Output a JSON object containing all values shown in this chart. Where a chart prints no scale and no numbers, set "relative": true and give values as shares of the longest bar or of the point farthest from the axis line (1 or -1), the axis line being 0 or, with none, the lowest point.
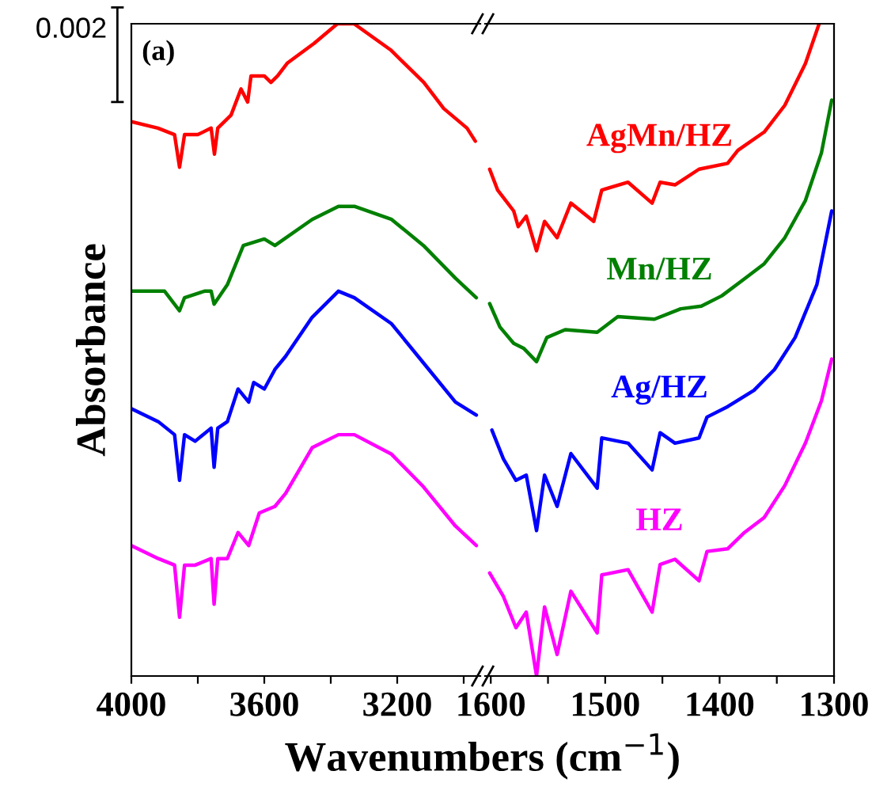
{
  "chart_data": [
    {
      "type": "line",
      "relative": true,
      "tick_labels": "x",
      "xlabel": "Wavenumbers (cm$^{−1}$)",
      "ylabel": "Absorbance",
      "annotations": [
        "(a)",
        "0.002"
      ],
      "xlim": [
        4000,
        2950
      ],
      "xticks": [
        4000,
        {
          "value": 3800,
          "label": null
        },
        3600,
        {
          "value": 3400,
          "label": null
        },
        3200,
        {
          "value": 3000,
          "label": null
        }
      ],
      "series": [
        {
          "color": "#ff0000",
          "x": [
            4000,
            3920,
            3870,
            3855,
            3840,
            3800,
            3760,
            3750,
            3740,
            3700,
            3670,
            3650,
            3640,
            3600,
            3580,
            3560,
            3530,
            3450,
            3380,
            3330,
            3220,
            3120,
            3060,
            2990,
            2965
          ],
          "values": [
            0.85,
            0.84,
            0.83,
            0.78,
            0.83,
            0.83,
            0.84,
            0.8,
            0.84,
            0.86,
            0.9,
            0.88,
            0.92,
            0.92,
            0.91,
            0.92,
            0.94,
            0.97,
            1.0,
            1.0,
            0.96,
            0.91,
            0.87,
            0.84,
            0.82
          ]
        },
        {
          "color": "#008000",
          "x": [
            4000,
            3900,
            3855,
            3840,
            3780,
            3760,
            3751,
            3711,
            3663,
            3600,
            3568,
            3456,
            3377,
            3329,
            3217,
            3121,
            3025,
            2962
          ],
          "values": [
            0.59,
            0.59,
            0.56,
            0.58,
            0.59,
            0.59,
            0.57,
            0.6,
            0.66,
            0.67,
            0.66,
            0.7,
            0.72,
            0.72,
            0.7,
            0.66,
            0.61,
            0.58
          ]
        },
        {
          "color": "#0000ff",
          "x": [
            4000,
            3919,
            3870,
            3855,
            3840,
            3808,
            3760,
            3751,
            3740,
            3711,
            3679,
            3647,
            3632,
            3600,
            3568,
            3536,
            3456,
            3377,
            3329,
            3217,
            3121,
            3025,
            2962
          ],
          "values": [
            0.41,
            0.39,
            0.37,
            0.3,
            0.37,
            0.36,
            0.38,
            0.32,
            0.38,
            0.39,
            0.44,
            0.42,
            0.45,
            0.44,
            0.47,
            0.49,
            0.55,
            0.59,
            0.58,
            0.54,
            0.48,
            0.42,
            0.4
          ]
        },
        {
          "color": "#ff00ff",
          "x": [
            4000,
            3919,
            3870,
            3855,
            3840,
            3808,
            3760,
            3751,
            3740,
            3711,
            3679,
            3647,
            3615,
            3568,
            3536,
            3456,
            3377,
            3329,
            3217,
            3121,
            3025,
            2962
          ],
          "values": [
            0.2,
            0.18,
            0.17,
            0.09,
            0.17,
            0.17,
            0.18,
            0.11,
            0.18,
            0.18,
            0.22,
            0.2,
            0.25,
            0.26,
            0.28,
            0.35,
            0.37,
            0.37,
            0.34,
            0.29,
            0.23,
            0.2
          ]
        }
      ]
    },
    {
      "type": "line",
      "relative": true,
      "tick_labels": "x",
      "xlim": [
        1605,
        1300
      ],
      "xticks": [
        1600,
        {
          "value": 1550,
          "label": null
        },
        1500,
        {
          "value": 1450,
          "label": null
        },
        1400,
        {
          "value": 1350,
          "label": null
        },
        1300
      ],
      "series": [
        {
          "name": "AgMn/HZ",
          "color": "#ff0000",
          "x": [
            1601,
            1594,
            1580,
            1576,
            1569,
            1560,
            1553,
            1542,
            1530,
            1510,
            1503,
            1480,
            1459,
            1452,
            1439,
            1418,
            1393,
            1384,
            1361,
            1343,
            1325,
            1313
          ],
          "values": [
            0.777,
            0.745,
            0.713,
            0.689,
            0.705,
            0.652,
            0.697,
            0.672,
            0.725,
            0.697,
            0.745,
            0.757,
            0.725,
            0.757,
            0.753,
            0.777,
            0.786,
            0.806,
            0.834,
            0.875,
            0.939,
            1.0
          ]
        },
        {
          "name": "Mn/HZ",
          "color": "#008000",
          "x": [
            1601,
            1592,
            1580,
            1571,
            1560,
            1551,
            1535,
            1507,
            1489,
            1457,
            1434,
            1416,
            1398,
            1379,
            1361,
            1343,
            1325,
            1311,
            1302
          ],
          "values": [
            0.571,
            0.535,
            0.51,
            0.502,
            0.482,
            0.519,
            0.531,
            0.527,
            0.551,
            0.547,
            0.563,
            0.567,
            0.583,
            0.608,
            0.632,
            0.672,
            0.729,
            0.802,
            0.883
          ]
        },
        {
          "name": "Ag/HZ",
          "color": "#0000ff",
          "x": [
            1599,
            1589,
            1578,
            1569,
            1560,
            1553,
            1542,
            1530,
            1507,
            1503,
            1480,
            1459,
            1452,
            1439,
            1418,
            1411,
            1393,
            1370,
            1352,
            1334,
            1315,
            1302
          ],
          "values": [
            0.377,
            0.333,
            0.3,
            0.308,
            0.223,
            0.308,
            0.26,
            0.341,
            0.288,
            0.365,
            0.357,
            0.316,
            0.373,
            0.357,
            0.365,
            0.397,
            0.413,
            0.438,
            0.47,
            0.519,
            0.6,
            0.713
          ]
        },
        {
          "name": "HZ",
          "color": "#ff00ff",
          "x": [
            1601,
            1589,
            1578,
            1569,
            1560,
            1553,
            1542,
            1530,
            1507,
            1503,
            1480,
            1459,
            1452,
            1439,
            1418,
            1411,
            1393,
            1379,
            1361,
            1343,
            1325,
            1311,
            1302
          ],
          "values": [
            0.158,
            0.122,
            0.074,
            0.098,
            0.0,
            0.106,
            0.033,
            0.13,
            0.066,
            0.155,
            0.163,
            0.098,
            0.171,
            0.179,
            0.146,
            0.191,
            0.195,
            0.219,
            0.243,
            0.292,
            0.357,
            0.422,
            0.486
          ]
        }
      ]
    }
  ]
}
